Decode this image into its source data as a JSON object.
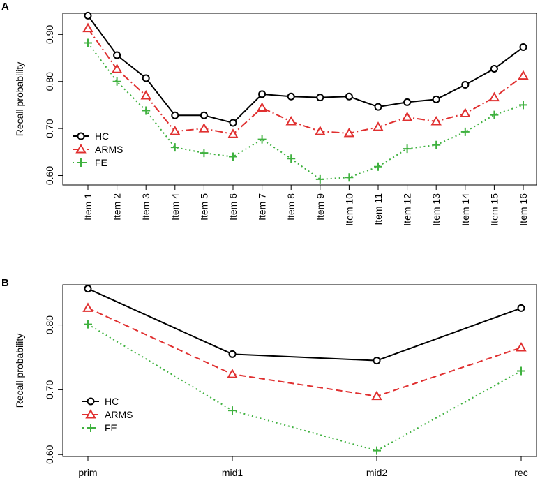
{
  "chart_data": [
    {
      "panel": "A",
      "type": "line",
      "ylabel": "Recall probability",
      "xlabel": "",
      "ylim": [
        0.58,
        0.945
      ],
      "yticks": [
        "0.60",
        "0.70",
        "0.80",
        "0.90"
      ],
      "ytick_values": [
        0.6,
        0.7,
        0.8,
        0.9
      ],
      "categories": [
        "Item 1",
        "Item 2",
        "Item 3",
        "Item 4",
        "Item 5",
        "Item 6",
        "Item 7",
        "Item 8",
        "Item 9",
        "Item 10",
        "Item 11",
        "Item 12",
        "Item 13",
        "Item 14",
        "Item 15",
        "Item 16"
      ],
      "legend_position": "bottom-left",
      "series": [
        {
          "name": "HC",
          "color": "#000000",
          "marker": "circle",
          "dash": "solid",
          "values": [
            0.94,
            0.856,
            0.807,
            0.728,
            0.728,
            0.712,
            0.773,
            0.768,
            0.766,
            0.768,
            0.746,
            0.756,
            0.762,
            0.793,
            0.827,
            0.873
          ]
        },
        {
          "name": "ARMS",
          "color": "#e03030",
          "marker": "triangle",
          "dash": "dashdot",
          "values": [
            0.913,
            0.826,
            0.77,
            0.694,
            0.7,
            0.688,
            0.744,
            0.715,
            0.694,
            0.69,
            0.703,
            0.724,
            0.715,
            0.732,
            0.766,
            0.812
          ]
        },
        {
          "name": "FE",
          "color": "#3fb13f",
          "marker": "plus",
          "dash": "dotted",
          "values": [
            0.882,
            0.8,
            0.738,
            0.66,
            0.648,
            0.64,
            0.677,
            0.636,
            0.592,
            0.596,
            0.619,
            0.657,
            0.665,
            0.693,
            0.729,
            0.75
          ]
        }
      ]
    },
    {
      "panel": "B",
      "type": "line",
      "ylabel": "Recall probability",
      "xlabel": "",
      "ylim": [
        0.597,
        0.862
      ],
      "yticks": [
        "0.60",
        "0.70",
        "0.80"
      ],
      "ytick_values": [
        0.6,
        0.7,
        0.8
      ],
      "categories": [
        "prim",
        "mid1",
        "mid2",
        "rec"
      ],
      "legend_position": "bottom-left",
      "series": [
        {
          "name": "HC",
          "color": "#000000",
          "marker": "circle",
          "dash": "solid",
          "values": [
            0.856,
            0.755,
            0.745,
            0.826
          ]
        },
        {
          "name": "ARMS",
          "color": "#e03030",
          "marker": "triangle",
          "dash": "dashed",
          "values": [
            0.826,
            0.724,
            0.69,
            0.765
          ]
        },
        {
          "name": "FE",
          "color": "#3fb13f",
          "marker": "plus",
          "dash": "dotted",
          "values": [
            0.801,
            0.668,
            0.606,
            0.729
          ]
        }
      ]
    }
  ]
}
